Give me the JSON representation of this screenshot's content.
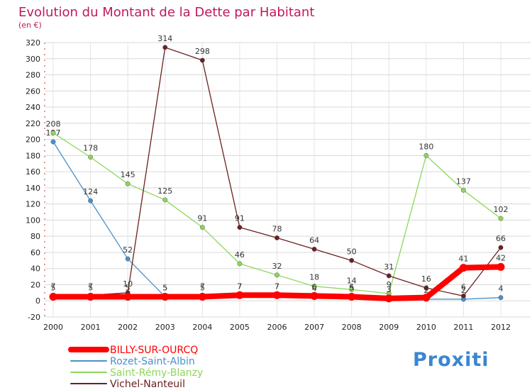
{
  "chart_data": {
    "type": "line",
    "title": "Evolution du Montant de la Dette par Habitant",
    "subtitle": "(en €)",
    "x": [
      "2000",
      "2001",
      "2002",
      "2003",
      "2004",
      "2005",
      "2006",
      "2007",
      "2008",
      "2009",
      "2010",
      "2011",
      "2012"
    ],
    "ylim": [
      -20,
      320
    ],
    "yticks": [
      -20,
      0,
      20,
      40,
      60,
      80,
      100,
      120,
      140,
      160,
      180,
      200,
      220,
      240,
      260,
      280,
      300,
      320
    ],
    "series": [
      {
        "name": "BILLY-SUR-OURCQ",
        "color": "#ff0000",
        "values": [
          5,
          5,
          5,
          5,
          5,
          7,
          7,
          6,
          5,
          3,
          4,
          41,
          42
        ],
        "labels": [
          "5",
          "5",
          "5",
          "5",
          "5",
          "7",
          "7",
          "6",
          "5",
          "3",
          "4",
          "41",
          "42"
        ]
      },
      {
        "name": "Rozet-Saint-Albin",
        "color": "#4a90c8",
        "values": [
          197,
          124,
          52,
          5,
          7,
          7,
          7,
          4,
          6,
          3,
          2,
          2,
          4
        ],
        "labels": [
          "197",
          "124",
          "52",
          "5",
          "7",
          "7",
          "7",
          "4",
          "6",
          "3",
          "2",
          "2",
          "4"
        ]
      },
      {
        "name": "Saint-Rémy-Blanzy",
        "color": "#8ed65a",
        "values": [
          208,
          178,
          145,
          125,
          91,
          46,
          32,
          18,
          14,
          9,
          180,
          137,
          102
        ],
        "labels": [
          "208",
          "178",
          "145",
          "125",
          "91",
          "46",
          "32",
          "18",
          "14",
          "9",
          "180",
          "137",
          "102"
        ]
      },
      {
        "name": "Vichel-Nanteuil",
        "color": "#6b2020",
        "values": [
          7,
          7,
          10,
          314,
          298,
          91,
          78,
          64,
          50,
          31,
          16,
          6,
          66
        ],
        "labels": [
          "7",
          "7",
          "10",
          "314",
          "298",
          "91",
          "78",
          "64",
          "50",
          "31",
          "16",
          "6",
          "66"
        ]
      }
    ]
  },
  "logo": {
    "text": "Proxiti"
  }
}
